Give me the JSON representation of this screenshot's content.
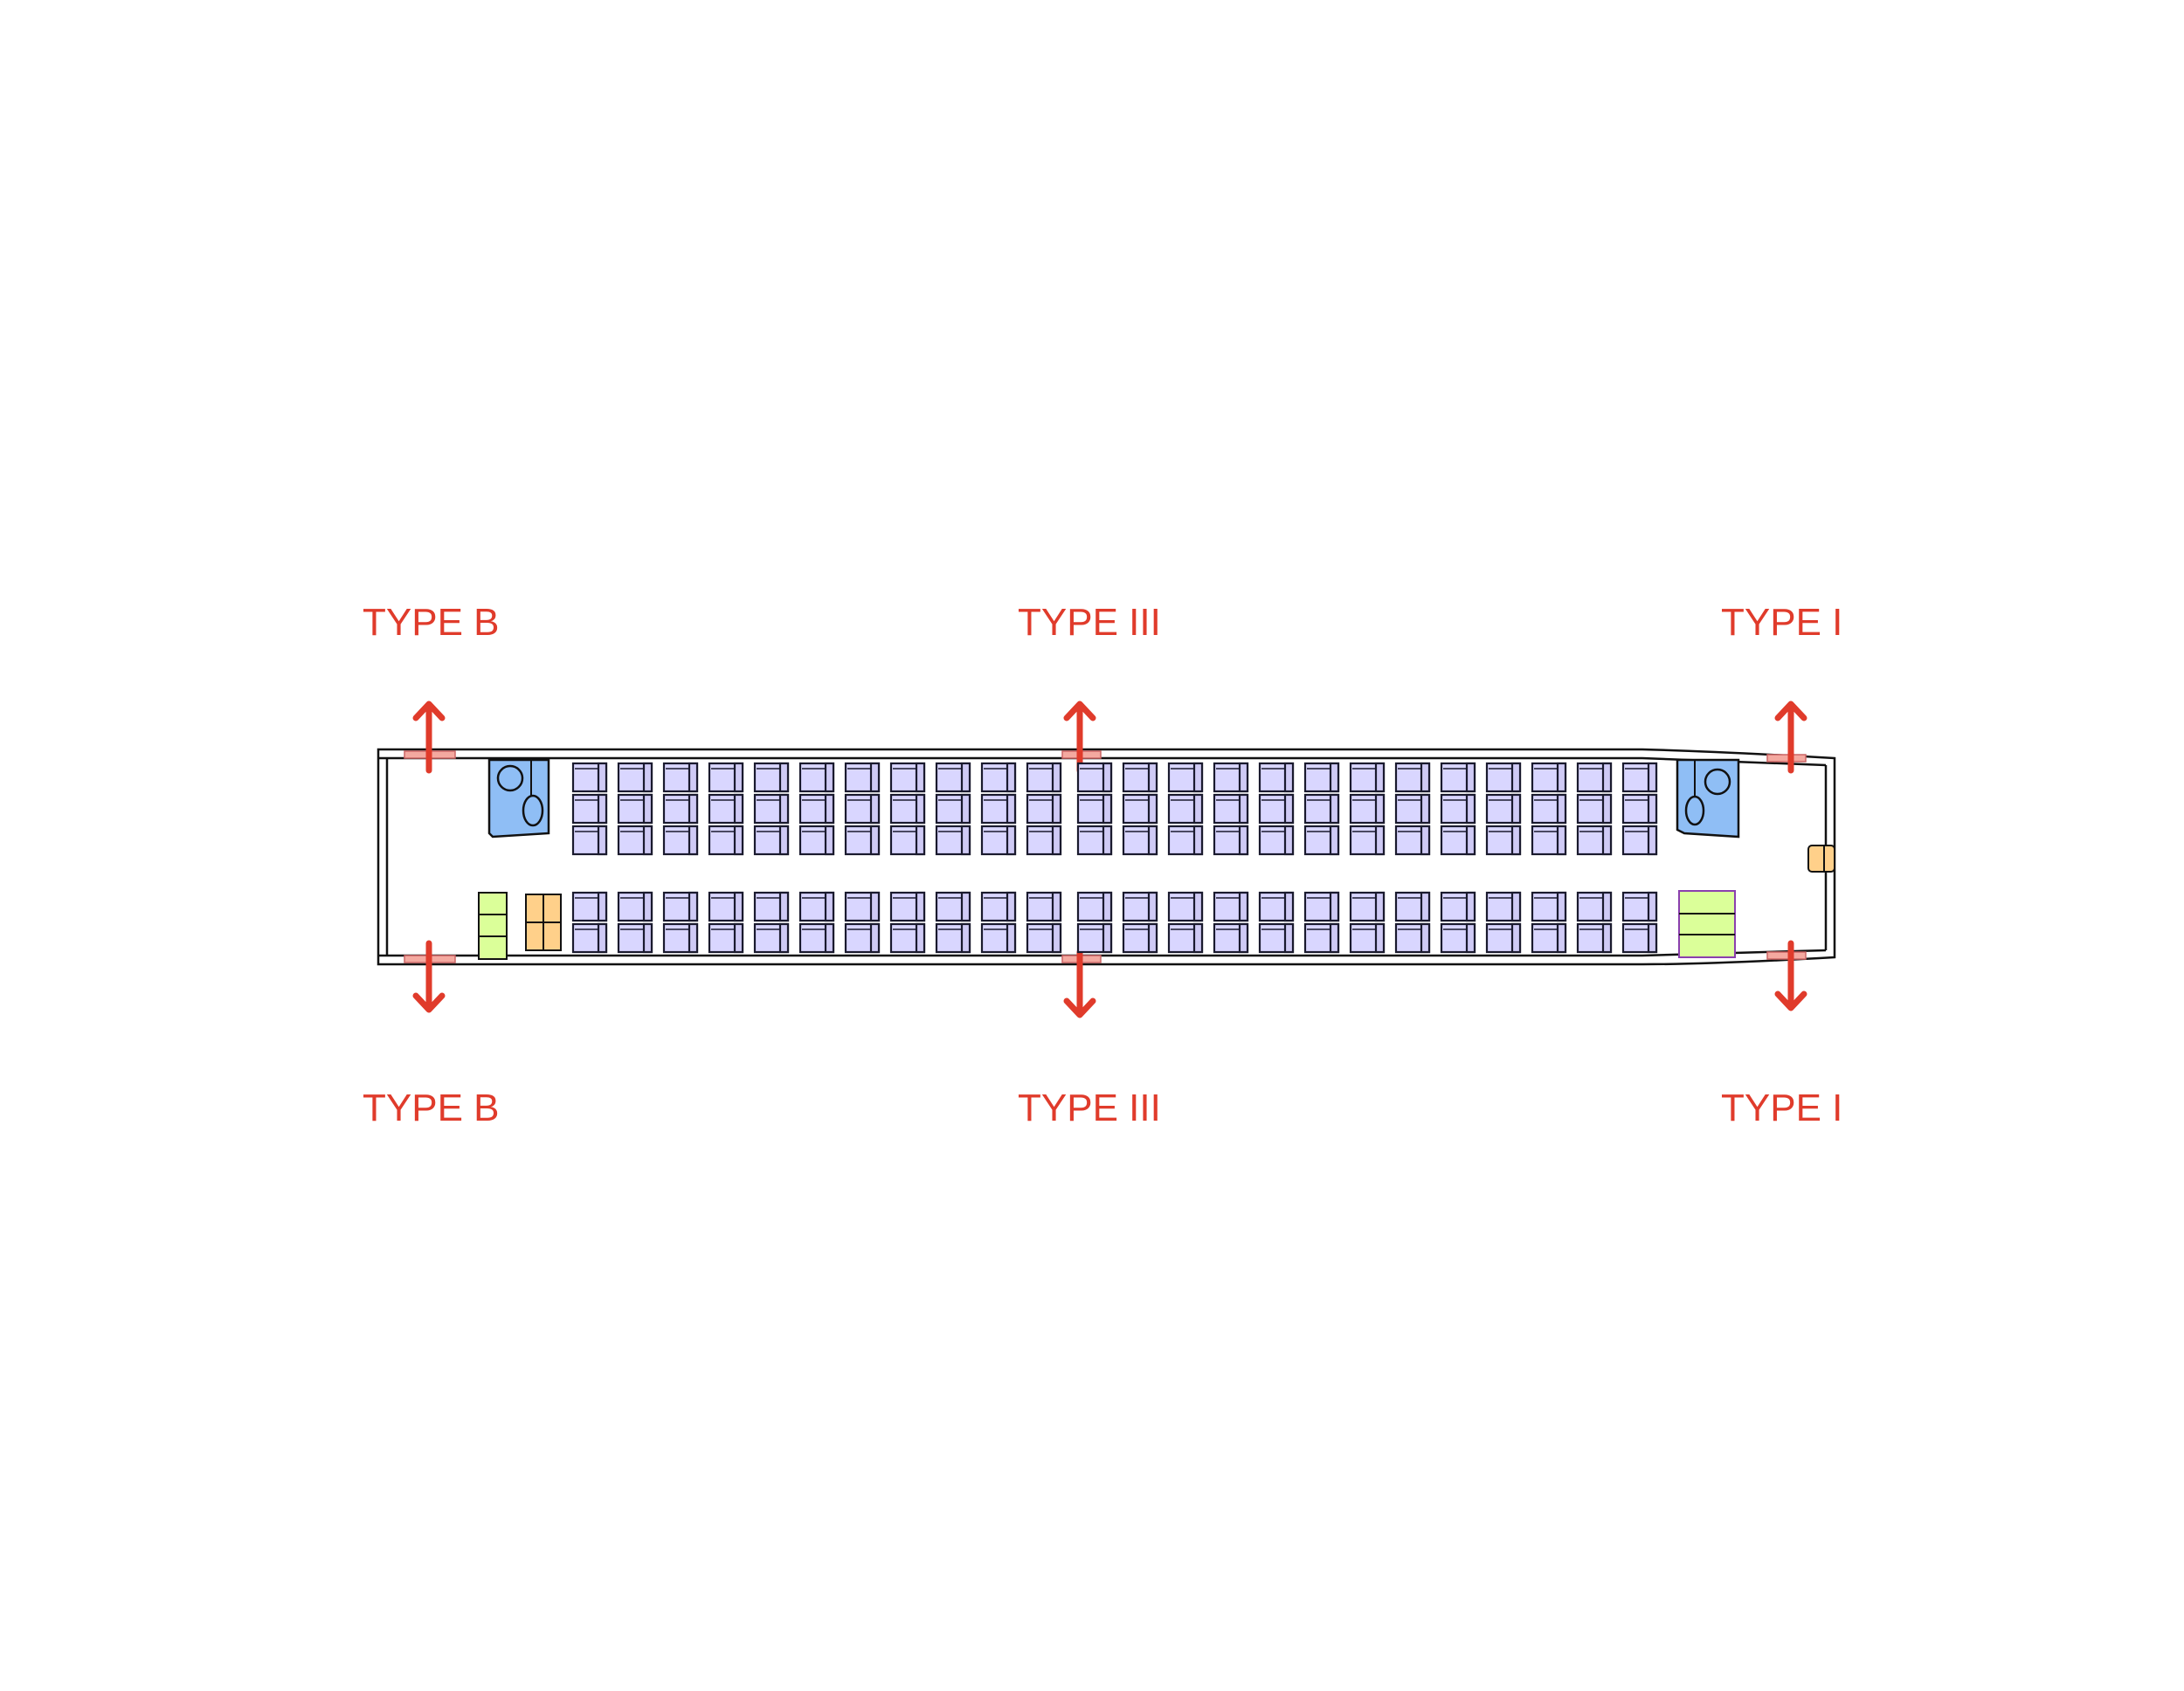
{
  "diagram": {
    "exit_labels": {
      "fwd_top": "TYPE B",
      "fwd_bottom": "TYPE B",
      "mid_top": "TYPE III",
      "mid_bottom": "TYPE III",
      "aft_top": "TYPE I",
      "aft_bottom": "TYPE I"
    },
    "colors": {
      "exit_red": "#e03b2b",
      "exit_door": "#f4a9a0",
      "seat_fill": "#d9d6ff",
      "lavatory": "#8fbef5",
      "galley": "#ffd08a",
      "closet": "#dbff99"
    },
    "cabin": {
      "seat_rows": 24,
      "left_block_seats_per_row": 3,
      "right_block_seats_per_row": 2,
      "overwing_exit_after_row": 11
    }
  }
}
